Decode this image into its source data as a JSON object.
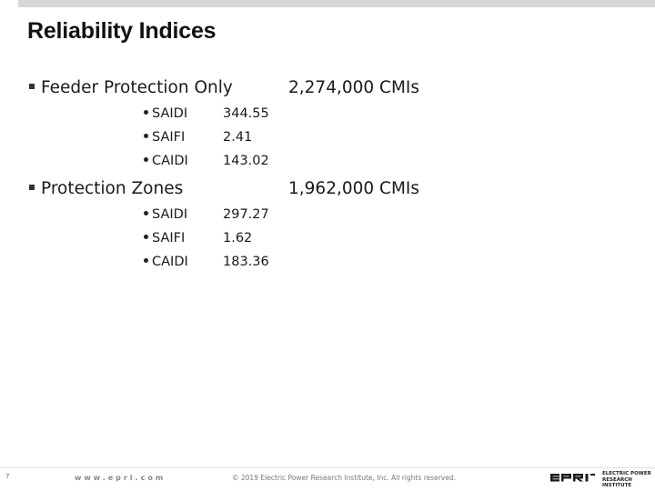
{
  "title": "Reliability Indices",
  "sections": [
    {
      "label": "Feeder Protection Only",
      "cmis": "2,274,000 CMIs",
      "metrics": [
        {
          "name": "SAIDI",
          "value": "344.55"
        },
        {
          "name": "SAIFI",
          "value": "2.41"
        },
        {
          "name": "CAIDI",
          "value": "143.02"
        }
      ]
    },
    {
      "label": "Protection Zones",
      "cmis": "1,962,000 CMIs",
      "metrics": [
        {
          "name": "SAIDI",
          "value": "297.27"
        },
        {
          "name": "SAIFI",
          "value": "1.62"
        },
        {
          "name": "CAIDI",
          "value": "183.36"
        }
      ]
    }
  ],
  "footer": {
    "page_number": "7",
    "website": "www.epri.com",
    "copyright": "© 2019 Electric Power Research Institute, Inc. All rights reserved.",
    "logo_line1": "ELECTRIC POWER",
    "logo_line2": "RESEARCH INSTITUTE",
    "logo_color": "#1a1a1a"
  }
}
